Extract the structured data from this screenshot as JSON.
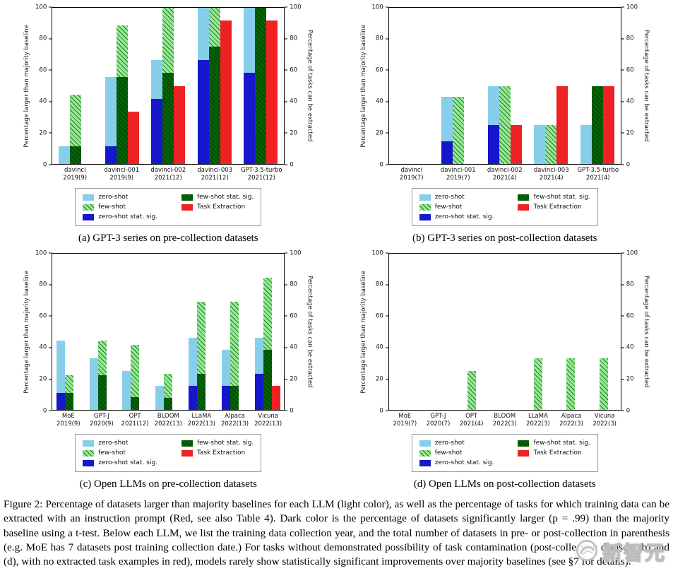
{
  "axes": {
    "ylabel_left": "Percentage larger than majority baseline",
    "ylabel_right": "Percentage of tasks can be extracted",
    "ylim": [
      0,
      100
    ],
    "yticks": [
      0,
      20,
      40,
      60,
      80,
      100
    ]
  },
  "legend": {
    "items": [
      {
        "key": "zero_shot",
        "label": "zero-shot"
      },
      {
        "key": "few_shot",
        "label": "few-shot"
      },
      {
        "key": "zero_shot_sig",
        "label": "zero-shot stat. sig."
      },
      {
        "key": "few_shot_sig",
        "label": "few-shot stat. sig."
      },
      {
        "key": "task_extraction",
        "label": "Task Extraction"
      }
    ]
  },
  "colors": {
    "zero_shot": "#87CEEB",
    "zero_shot_sig": "#1616CC",
    "few_shot_base": "#98E898",
    "few_shot_hatch": "#1E7D1E",
    "few_shot_sig_base": "#066406",
    "few_shot_sig_hatch": "#033903",
    "task_extraction": "#EE2222"
  },
  "chart_data": [
    {
      "id": "a",
      "type": "bar",
      "caption": "(a) GPT-3 series on pre-collection datasets",
      "categories": [
        {
          "name": "davinci",
          "sub": "2019(9)"
        },
        {
          "name": "davinci-001",
          "sub": "2019(9)"
        },
        {
          "name": "davinci-002",
          "sub": "2021(12)"
        },
        {
          "name": "davinci-003",
          "sub": "2021(12)"
        },
        {
          "name": "GPT-3.5-turbo",
          "sub": "2021(12)"
        }
      ],
      "series": {
        "zero_shot": [
          11.1,
          55.6,
          66.7,
          100,
          100
        ],
        "zero_shot_sig": [
          0,
          11.1,
          41.7,
          66.7,
          58.3
        ],
        "few_shot": [
          44.4,
          88.9,
          100,
          100,
          100
        ],
        "few_shot_sig": [
          11.1,
          55.6,
          58.3,
          75,
          100
        ],
        "task_extraction": [
          0,
          33.3,
          50,
          91.7,
          91.7
        ]
      }
    },
    {
      "id": "b",
      "type": "bar",
      "caption": "(b) GPT-3 series on post-collection datasets",
      "categories": [
        {
          "name": "davinci",
          "sub": "2019(7)"
        },
        {
          "name": "davinci-001",
          "sub": "2019(7)"
        },
        {
          "name": "davinci-002",
          "sub": "2021(4)"
        },
        {
          "name": "davinci-003",
          "sub": "2021(4)"
        },
        {
          "name": "GPT-3.5-turbo",
          "sub": "2021(4)"
        }
      ],
      "series": {
        "zero_shot": [
          0,
          42.9,
          50,
          25,
          25
        ],
        "zero_shot_sig": [
          0,
          14.3,
          25,
          0,
          0
        ],
        "few_shot": [
          0,
          42.9,
          50,
          25,
          50
        ],
        "few_shot_sig": [
          0,
          0,
          0,
          0,
          50
        ],
        "task_extraction": [
          0,
          0,
          25,
          50,
          50
        ]
      }
    },
    {
      "id": "c",
      "type": "bar",
      "caption": "(c) Open LLMs on pre-collection datasets",
      "categories": [
        {
          "name": "MoE",
          "sub": "2019(9)"
        },
        {
          "name": "GPT-J",
          "sub": "2020(9)"
        },
        {
          "name": "OPT",
          "sub": "2021(12)"
        },
        {
          "name": "BLOOM",
          "sub": "2022(13)"
        },
        {
          "name": "LLaMA",
          "sub": "2022(13)"
        },
        {
          "name": "Alpaca",
          "sub": "2022(13)"
        },
        {
          "name": "Vicuna",
          "sub": "2022(13)"
        }
      ],
      "series": {
        "zero_shot": [
          44.4,
          33.3,
          25,
          15.4,
          46.2,
          38.5,
          46.2
        ],
        "zero_shot_sig": [
          11.1,
          0,
          0,
          0,
          15.4,
          15.4,
          23.1
        ],
        "few_shot": [
          22.2,
          44.4,
          41.7,
          23.1,
          69.2,
          69.2,
          84.6
        ],
        "few_shot_sig": [
          11.1,
          22.2,
          8.3,
          7.7,
          23.1,
          15.4,
          38.5
        ],
        "task_extraction": [
          0,
          0,
          0,
          0,
          0,
          0,
          15.4
        ]
      }
    },
    {
      "id": "d",
      "type": "bar",
      "caption": "(d) Open LLMs on post-collection datasets",
      "categories": [
        {
          "name": "MoE",
          "sub": "2019(7)"
        },
        {
          "name": "GPT-J",
          "sub": "2020(7)"
        },
        {
          "name": "OPT",
          "sub": "2021(4)"
        },
        {
          "name": "BLOOM",
          "sub": "2022(3)"
        },
        {
          "name": "LLaMA",
          "sub": "2022(3)"
        },
        {
          "name": "Alpaca",
          "sub": "2022(3)"
        },
        {
          "name": "Vicuna",
          "sub": "2022(3)"
        }
      ],
      "series": {
        "zero_shot": [
          0,
          0,
          0,
          0,
          0,
          0,
          0
        ],
        "zero_shot_sig": [
          0,
          0,
          0,
          0,
          0,
          0,
          0
        ],
        "few_shot": [
          0,
          0,
          25,
          0,
          33.3,
          33.3,
          33.3
        ],
        "few_shot_sig": [
          0,
          0,
          0,
          0,
          0,
          0,
          0
        ],
        "task_extraction": [
          0,
          0,
          0,
          0,
          0,
          0,
          0
        ]
      }
    }
  ],
  "figure_caption": "Figure 2: Percentage of datasets larger than majority baselines for each LLM (light color), as well as the percentage of tasks for which training data can be extracted with an instruction prompt (Red, see also Table 4). Dark color is the percentage of datasets significantly larger (p = .99) than the majority baseline using a t-test. Below each LLM, we list the training data collection year, and the total number of datasets in pre- or post-collection in parenthesis (e.g. MoE has 7 datasets post training collection date.) For tasks without demonstrated possibility of task contamination (post-collection datasets (b) and (d), with no extracted task examples in red), models rarely show statistically significant improvements over majority baselines (see §7 for details).",
  "watermark": {
    "text": "新智元"
  }
}
